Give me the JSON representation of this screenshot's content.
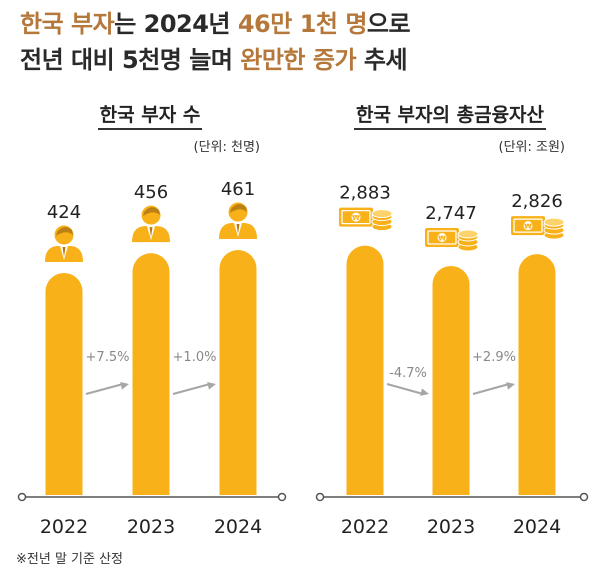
{
  "headline": {
    "line1": [
      {
        "text": "한국 부자",
        "accent": true
      },
      {
        "text": "는 2024년 ",
        "accent": false
      },
      {
        "text": "46만 1천 명",
        "accent": true
      },
      {
        "text": "으로",
        "accent": false
      }
    ],
    "line2": [
      {
        "text": "전년 대비 5천명 늘며 ",
        "accent": false
      },
      {
        "text": "완만한 증가",
        "accent": true
      },
      {
        "text": " 추세",
        "accent": false
      }
    ]
  },
  "colors": {
    "bar": "#F8B118",
    "accent_text": "#B5783A",
    "arrow": "#A6A6A6",
    "axis": "#555555"
  },
  "chart_data": [
    {
      "type": "bar",
      "title": "한국 부자 수",
      "unit": "(단위: 천명)",
      "categories": [
        "2022",
        "2023",
        "2024"
      ],
      "values": [
        424,
        456,
        461
      ],
      "value_labels": [
        "424",
        "456",
        "461"
      ],
      "changes": [
        "+7.5%",
        "+1.0%"
      ],
      "icon": "person-icon"
    },
    {
      "type": "bar",
      "title": "한국 부자의 총금융자산",
      "unit": "(단위: 조원)",
      "categories": [
        "2022",
        "2023",
        "2024"
      ],
      "values": [
        2883,
        2747,
        2826
      ],
      "value_labels": [
        "2,883",
        "2,747",
        "2,826"
      ],
      "changes": [
        "-4.7%",
        "+2.9%"
      ],
      "icon": "money-icon"
    }
  ],
  "footnote": "※전년 말 기준 산정"
}
